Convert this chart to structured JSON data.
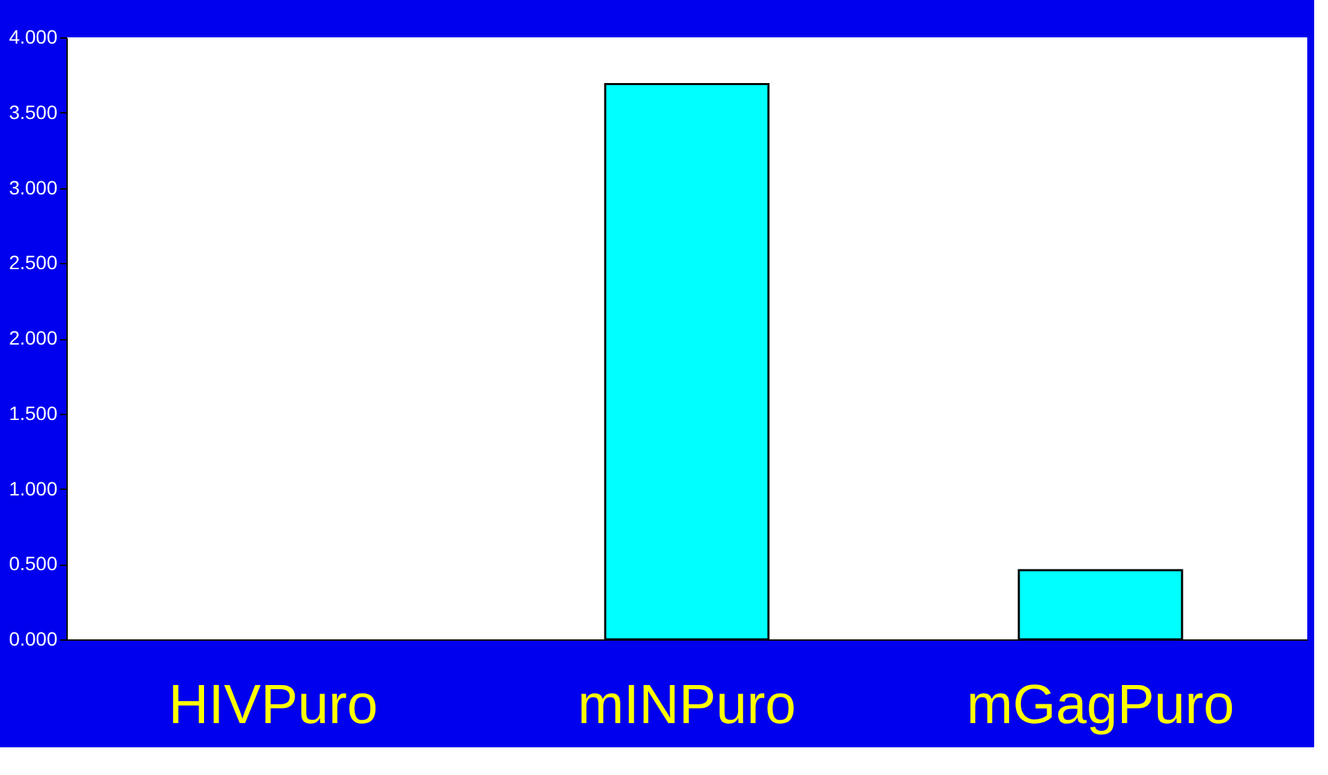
{
  "chart_data": {
    "type": "bar",
    "categories": [
      "HIVPuro",
      "mINPuro",
      "mGagPuro"
    ],
    "values": [
      null,
      3.69,
      0.46
    ],
    "color": "#00ffff",
    "ylim": [
      0,
      4
    ],
    "yticks": [
      {
        "value": 0,
        "label": "0.000"
      },
      {
        "value": 0.5,
        "label": "0.500"
      },
      {
        "value": 1,
        "label": "1.000"
      },
      {
        "value": 1.5,
        "label": "1.500"
      },
      {
        "value": 2,
        "label": "2.000"
      },
      {
        "value": 2.5,
        "label": "2.500"
      },
      {
        "value": 3,
        "label": "3.000"
      },
      {
        "value": 3.5,
        "label": "3.500"
      },
      {
        "value": 4,
        "label": "4.000"
      }
    ],
    "grid": false
  }
}
